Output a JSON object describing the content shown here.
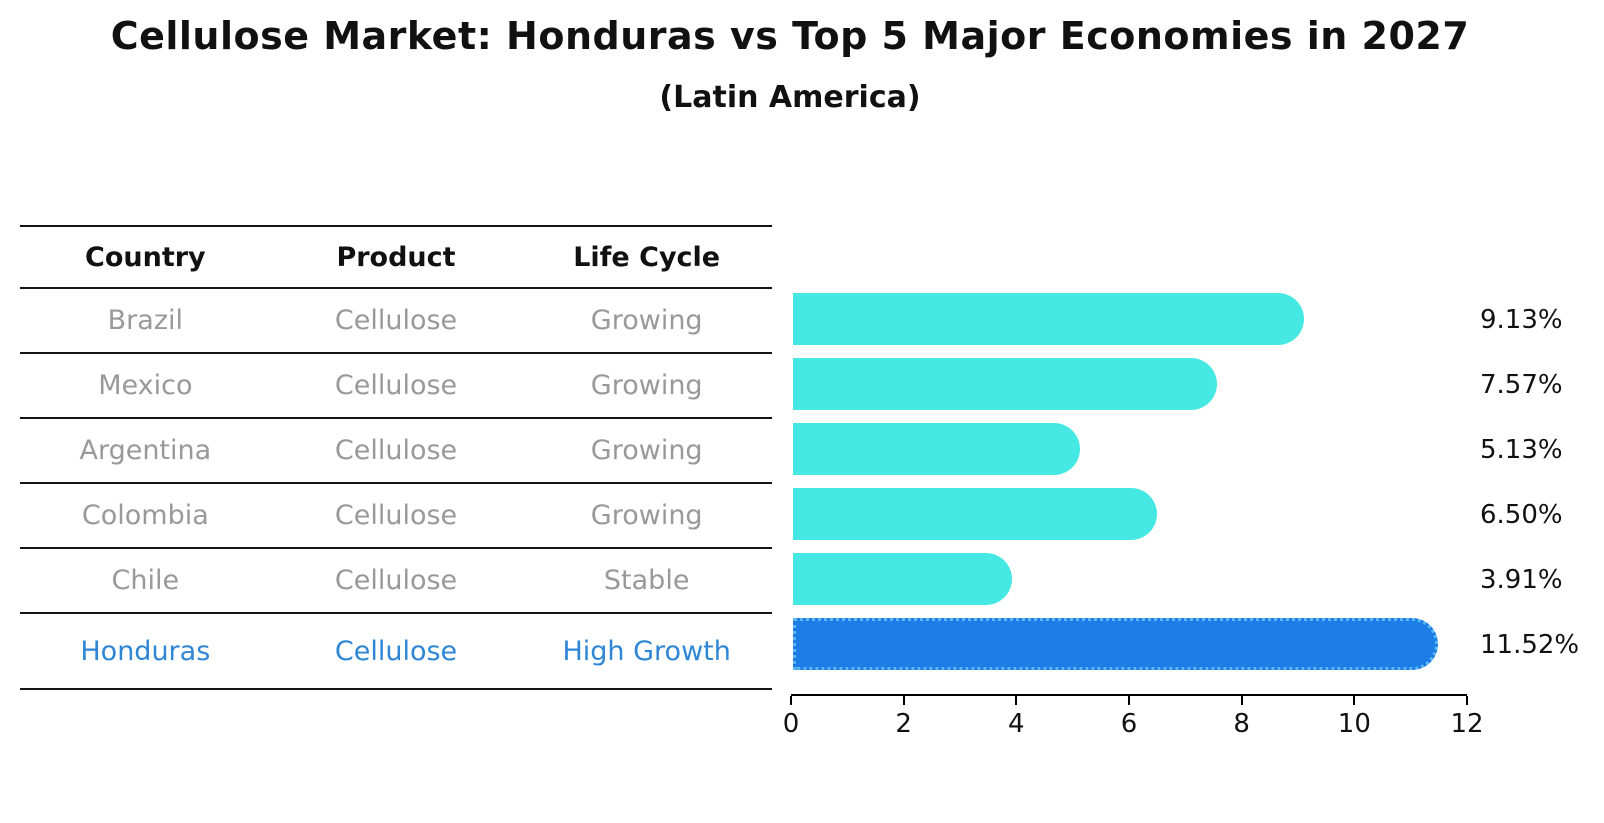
{
  "title": "Cellulose Market: Honduras vs Top 5 Major Economies in 2027",
  "subtitle": "(Latin America)",
  "table": {
    "headers": [
      "Country",
      "Product",
      "Life Cycle"
    ],
    "rows": [
      {
        "country": "Brazil",
        "product": "Cellulose",
        "life_cycle": "Growing",
        "highlight": false
      },
      {
        "country": "Mexico",
        "product": "Cellulose",
        "life_cycle": "Growing",
        "highlight": false
      },
      {
        "country": "Argentina",
        "product": "Cellulose",
        "life_cycle": "Growing",
        "highlight": false
      },
      {
        "country": "Colombia",
        "product": "Cellulose",
        "life_cycle": "Growing",
        "highlight": false
      },
      {
        "country": "Chile",
        "product": "Cellulose",
        "life_cycle": "Stable",
        "highlight": false
      },
      {
        "country": "Honduras",
        "product": "Cellulose",
        "life_cycle": "High Growth",
        "highlight": true
      }
    ]
  },
  "chart_data": {
    "type": "bar",
    "orientation": "horizontal",
    "title": "Cellulose Market: Honduras vs Top 5 Major Economies in 2027",
    "subtitle": "(Latin America)",
    "categories": [
      "Brazil",
      "Mexico",
      "Argentina",
      "Colombia",
      "Chile",
      "Honduras"
    ],
    "values": [
      9.13,
      7.57,
      5.13,
      6.5,
      3.91,
      11.52
    ],
    "value_labels": [
      "9.13%",
      "7.57%",
      "5.13%",
      "6.50%",
      "3.91%",
      "11.52%"
    ],
    "highlight_index": 5,
    "xlim": [
      0,
      12
    ],
    "x_ticks": [
      0,
      2,
      4,
      6,
      8,
      10,
      12
    ],
    "grid": false,
    "legend": false
  },
  "colors": {
    "bar": "#45E8E2",
    "highlight_bar": "#1B7DE5",
    "highlight_border": "#5BB8F5",
    "highlight_text": "#2E86D5",
    "row_text": "#999999",
    "line": "#141414"
  }
}
